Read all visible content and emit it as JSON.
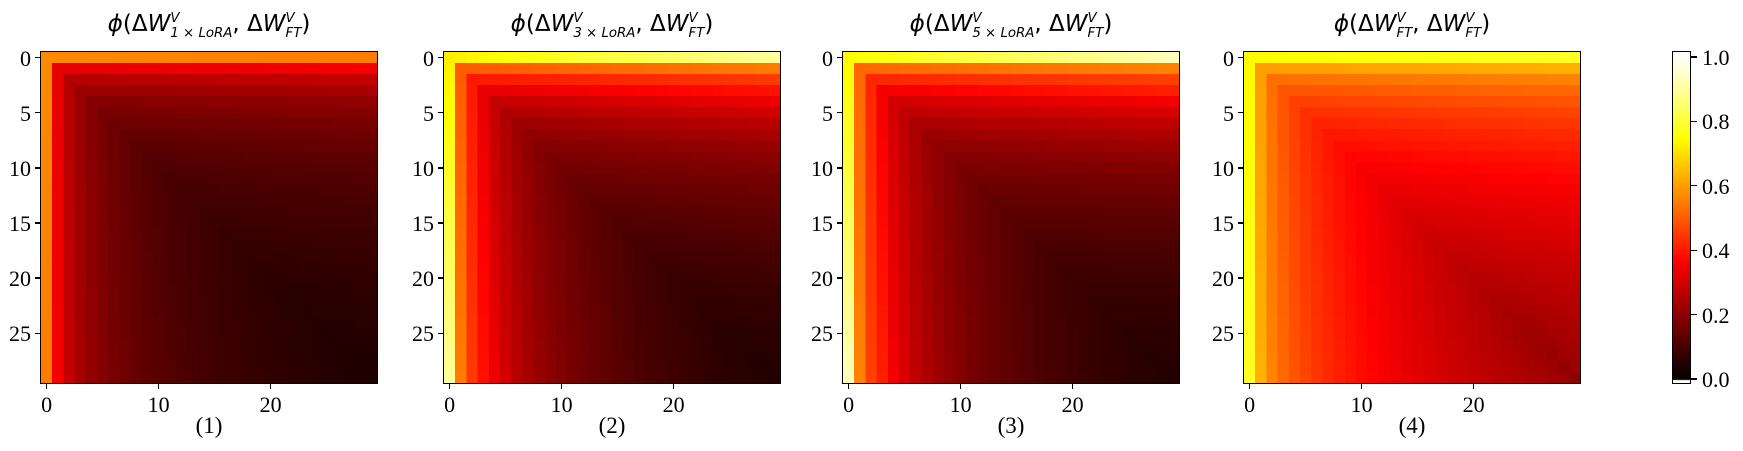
{
  "figure": {
    "background": "#ffffff",
    "text_color": "#000000",
    "description": "Four heatmaps of subspace similarity between weight-update matrices with shared hot colorbar"
  },
  "chart_data": {
    "type": "heatmap",
    "grid": [
      30,
      30
    ],
    "colormap": "hot",
    "value_range": [
      0,
      1
    ],
    "legend_position": "right-colorbar",
    "value_model": "v(i,j) = diag[min(i,j)] + (edge[min(i,j)] - diag[min(i,j)]) * (max(i,j)-min(i,j)) / (29-min(i,j))",
    "xticks": [
      {
        "label": "0",
        "col": 0
      },
      {
        "label": "10",
        "col": 10
      },
      {
        "label": "20",
        "col": 20
      }
    ],
    "yticks": [
      {
        "label": "0",
        "row": 0
      },
      {
        "label": "5",
        "row": 5
      },
      {
        "label": "10",
        "row": 10
      },
      {
        "label": "15",
        "row": 15
      },
      {
        "label": "20",
        "row": 20
      },
      {
        "label": "25",
        "row": 25
      }
    ],
    "colorbar": {
      "ticks": [
        {
          "label": "1.0",
          "value": 1.0
        },
        {
          "label": "0.8",
          "value": 0.8
        },
        {
          "label": "0.6",
          "value": 0.6
        },
        {
          "label": "0.4",
          "value": 0.4
        },
        {
          "label": "0.2",
          "value": 0.2
        },
        {
          "label": "0.0",
          "value": 0.0
        }
      ]
    },
    "panels": [
      {
        "caption": "(1)",
        "title": {
          "func": "ϕ",
          "open": "(",
          "delta": "Δ",
          "W": "W",
          "sup": "V",
          "sub": "1 × LoRA",
          "comma": ", ",
          "delta2": "Δ",
          "W2": "W",
          "sup2": "V",
          "sub2": "FT",
          "close": ")"
        },
        "diag": [
          0.57,
          0.33,
          0.26,
          0.22,
          0.19,
          0.17,
          0.155,
          0.142,
          0.131,
          0.121,
          0.113,
          0.106,
          0.1,
          0.094,
          0.089,
          0.084,
          0.079,
          0.075,
          0.071,
          0.067,
          0.064,
          0.061,
          0.058,
          0.055,
          0.052,
          0.05,
          0.048,
          0.046,
          0.044,
          0.042
        ],
        "edge": [
          0.55,
          0.35,
          0.28,
          0.24,
          0.21,
          0.19,
          0.172,
          0.158,
          0.146,
          0.135,
          0.126,
          0.118,
          0.111,
          0.104,
          0.098,
          0.093,
          0.088,
          0.083,
          0.078,
          0.074,
          0.07,
          0.066,
          0.063,
          0.06,
          0.057,
          0.054,
          0.052,
          0.05,
          0.048,
          0.046
        ]
      },
      {
        "caption": "(2)",
        "title": {
          "func": "ϕ",
          "open": "(",
          "delta": "Δ",
          "W": "W",
          "sup": "V",
          "sub": "3 × LoRA",
          "comma": ", ",
          "delta2": "Δ",
          "W2": "W",
          "sup2": "V",
          "sub2": "FT",
          "close": ")"
        },
        "diag": [
          0.72,
          0.5,
          0.4,
          0.33,
          0.28,
          0.25,
          0.225,
          0.205,
          0.188,
          0.174,
          0.162,
          0.151,
          0.141,
          0.132,
          0.123,
          0.115,
          0.107,
          0.1,
          0.093,
          0.087,
          0.081,
          0.076,
          0.071,
          0.067,
          0.063,
          0.059,
          0.056,
          0.053,
          0.05,
          0.048
        ],
        "edge": [
          0.9,
          0.55,
          0.45,
          0.39,
          0.34,
          0.3,
          0.265,
          0.24,
          0.218,
          0.2,
          0.184,
          0.17,
          0.158,
          0.147,
          0.137,
          0.127,
          0.118,
          0.11,
          0.102,
          0.095,
          0.089,
          0.083,
          0.077,
          0.072,
          0.068,
          0.064,
          0.06,
          0.057,
          0.054,
          0.051
        ]
      },
      {
        "caption": "(3)",
        "title": {
          "func": "ϕ",
          "open": "(",
          "delta": "Δ",
          "W": "W",
          "sup": "V",
          "sub": "5 × LoRA",
          "comma": ", ",
          "delta2": "Δ",
          "W2": "W",
          "sup2": "V",
          "sub2": "FT",
          "close": ")"
        },
        "diag": [
          0.74,
          0.52,
          0.42,
          0.35,
          0.3,
          0.27,
          0.243,
          0.221,
          0.203,
          0.188,
          0.174,
          0.162,
          0.151,
          0.141,
          0.131,
          0.122,
          0.114,
          0.106,
          0.099,
          0.092,
          0.086,
          0.08,
          0.075,
          0.07,
          0.066,
          0.062,
          0.058,
          0.055,
          0.052,
          0.05
        ],
        "edge": [
          0.93,
          0.56,
          0.46,
          0.41,
          0.35,
          0.31,
          0.275,
          0.248,
          0.225,
          0.205,
          0.188,
          0.173,
          0.16,
          0.148,
          0.138,
          0.128,
          0.119,
          0.111,
          0.103,
          0.096,
          0.09,
          0.084,
          0.078,
          0.073,
          0.069,
          0.065,
          0.061,
          0.058,
          0.055,
          0.052
        ]
      },
      {
        "caption": "(4)",
        "title": {
          "func": "ϕ",
          "open": "(",
          "delta": "Δ",
          "W": "W",
          "sup": "V",
          "sub": "FT",
          "comma": ", ",
          "delta2": "Δ",
          "W2": "W",
          "sup2": "V",
          "sub2": "FT",
          "close": ")"
        },
        "diag": [
          0.74,
          0.6,
          0.53,
          0.49,
          0.46,
          0.435,
          0.415,
          0.398,
          0.383,
          0.369,
          0.356,
          0.344,
          0.333,
          0.322,
          0.312,
          0.302,
          0.293,
          0.284,
          0.276,
          0.268,
          0.26,
          0.253,
          0.246,
          0.239,
          0.233,
          0.227,
          0.221,
          0.215,
          0.21,
          0.205
        ],
        "edge": [
          0.78,
          0.63,
          0.56,
          0.52,
          0.49,
          0.465,
          0.445,
          0.427,
          0.411,
          0.396,
          0.382,
          0.369,
          0.357,
          0.345,
          0.334,
          0.324,
          0.314,
          0.305,
          0.296,
          0.287,
          0.279,
          0.271,
          0.264,
          0.257,
          0.25,
          0.243,
          0.237,
          0.231,
          0.225,
          0.22
        ]
      }
    ]
  }
}
